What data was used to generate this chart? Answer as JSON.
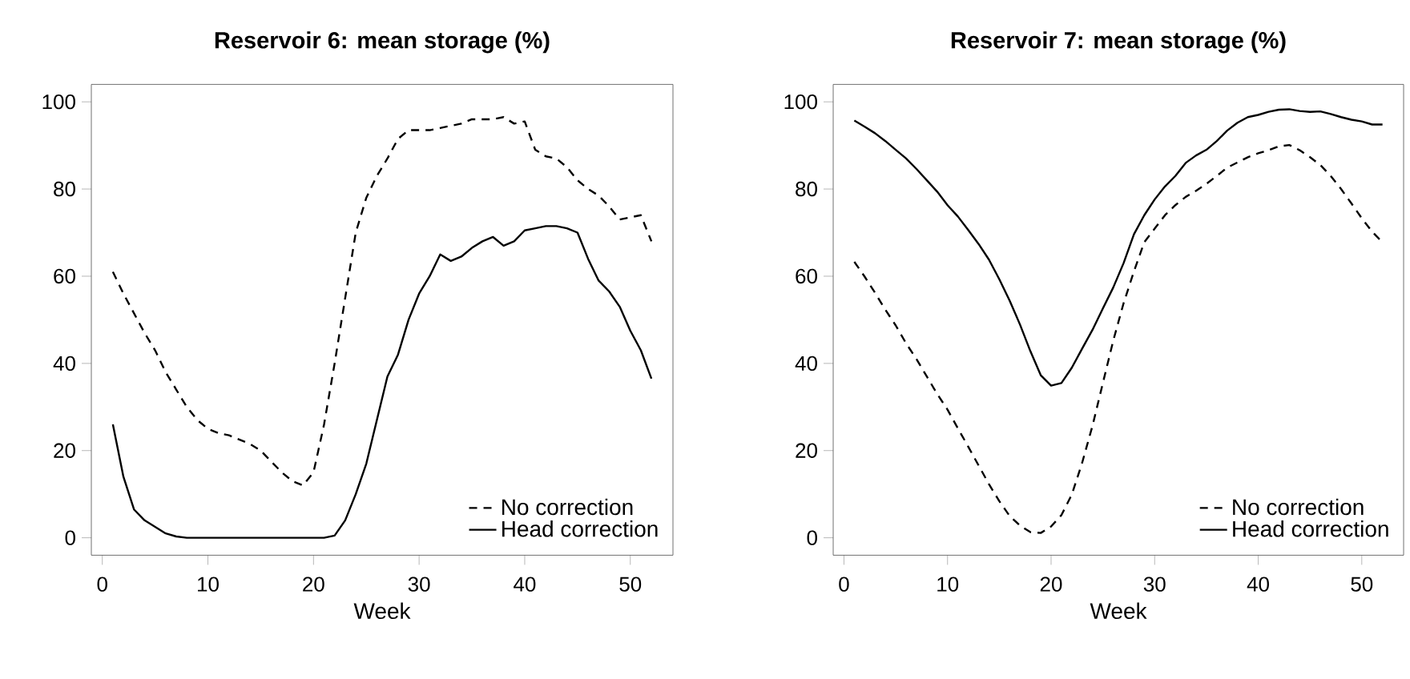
{
  "chart_data": [
    {
      "type": "line",
      "title": "Reservoir 6: mean storage (%)",
      "xlabel": "Week",
      "xlim": [
        -1.04,
        54.04
      ],
      "xticks": [
        0,
        10,
        20,
        30,
        40,
        50
      ],
      "ylim": [
        -4,
        104
      ],
      "yticks": [
        0,
        20,
        40,
        60,
        80,
        100
      ],
      "legend": "bottom right",
      "marker": "none",
      "x": [
        1,
        2,
        3,
        4,
        5,
        6,
        7,
        8,
        9,
        10,
        11,
        12,
        13,
        14,
        15,
        16,
        17,
        18,
        19,
        20,
        21,
        22,
        23,
        24,
        25,
        26,
        27,
        28,
        29,
        30,
        31,
        32,
        33,
        34,
        35,
        36,
        37,
        38,
        39,
        40,
        41,
        42,
        43,
        44,
        45,
        46,
        47,
        48,
        49,
        50,
        51,
        52
      ],
      "series": [
        {
          "name": "No correction",
          "color": "#000000",
          "line_style": "dashed",
          "values": [
            61,
            56,
            51.5,
            47,
            43,
            38,
            34,
            30,
            27,
            25,
            24,
            23.5,
            22.5,
            21.5,
            20,
            17.5,
            15,
            13,
            12,
            15,
            26,
            40,
            55,
            70,
            78,
            83,
            87,
            91.5,
            93.5,
            93.5,
            93.5,
            94,
            94.5,
            95,
            96,
            96,
            96,
            96.5,
            95,
            95.5,
            89,
            87.5,
            87,
            85,
            82,
            80,
            78.5,
            76,
            73,
            73.5,
            74,
            68
          ]
        },
        {
          "name": "Head correction",
          "color": "#000000",
          "line_style": "solid",
          "values": [
            26,
            14,
            6.5,
            4,
            2.5,
            1,
            0.3,
            0,
            0,
            0,
            0,
            0,
            0,
            0,
            0,
            0,
            0,
            0,
            0,
            0,
            0,
            0.5,
            4,
            10,
            17,
            27,
            37,
            42,
            50,
            56,
            60,
            65,
            63.5,
            64.5,
            66.5,
            68,
            69,
            67,
            68,
            70.5,
            71,
            71.5,
            71.5,
            71,
            70,
            64,
            59,
            56.5,
            53,
            47.5,
            43,
            36.5
          ]
        }
      ]
    },
    {
      "type": "line",
      "title": "Reservoir 7: mean storage (%)",
      "xlabel": "Week",
      "xlim": [
        -1.04,
        54.04
      ],
      "xticks": [
        0,
        10,
        20,
        30,
        40,
        50
      ],
      "ylim": [
        -4,
        104
      ],
      "yticks": [
        0,
        20,
        40,
        60,
        80,
        100
      ],
      "legend": "bottom right",
      "marker": "none",
      "x": [
        1,
        2,
        3,
        4,
        5,
        6,
        7,
        8,
        9,
        10,
        11,
        12,
        13,
        14,
        15,
        16,
        17,
        18,
        19,
        20,
        21,
        22,
        23,
        24,
        25,
        26,
        27,
        28,
        29,
        30,
        31,
        32,
        33,
        34,
        35,
        36,
        37,
        38,
        39,
        40,
        41,
        42,
        43,
        44,
        45,
        46,
        47,
        48,
        49,
        50,
        51,
        52
      ],
      "series": [
        {
          "name": "No correction",
          "color": "#000000",
          "line_style": "dashed",
          "values": [
            63.3,
            59.9,
            56.2,
            52.3,
            48.7,
            44.6,
            41,
            37,
            33,
            29.4,
            25.1,
            20.9,
            16.6,
            12.3,
            8.4,
            5,
            2.8,
            1.3,
            1.1,
            2.6,
            5.2,
            9.9,
            17.2,
            25.7,
            35.5,
            45.2,
            53.8,
            61.1,
            67.8,
            70.9,
            74,
            76.3,
            78.2,
            79.6,
            81.2,
            83,
            84.9,
            86.1,
            87.3,
            88.2,
            88.9,
            89.8,
            90.1,
            88.9,
            87.3,
            85.5,
            83,
            80,
            76.7,
            73.3,
            70.2,
            67.8
          ]
        },
        {
          "name": "Head correction",
          "color": "#000000",
          "line_style": "solid",
          "values": [
            95.7,
            94.3,
            92.8,
            91,
            89,
            87,
            84.6,
            82,
            79.4,
            76.3,
            73.7,
            70.6,
            67.4,
            63.8,
            59.3,
            54.4,
            48.9,
            42.8,
            37.3,
            34.9,
            35.5,
            39,
            43.4,
            47.7,
            52.6,
            57.4,
            63,
            69.6,
            74,
            77.6,
            80.6,
            83,
            86,
            87.7,
            89,
            91,
            93.4,
            95.2,
            96.5,
            97,
            97.7,
            98.2,
            98.3,
            97.9,
            97.7,
            97.8,
            97.2,
            96.5,
            95.9,
            95.5,
            94.8,
            94.8
          ]
        }
      ]
    }
  ]
}
